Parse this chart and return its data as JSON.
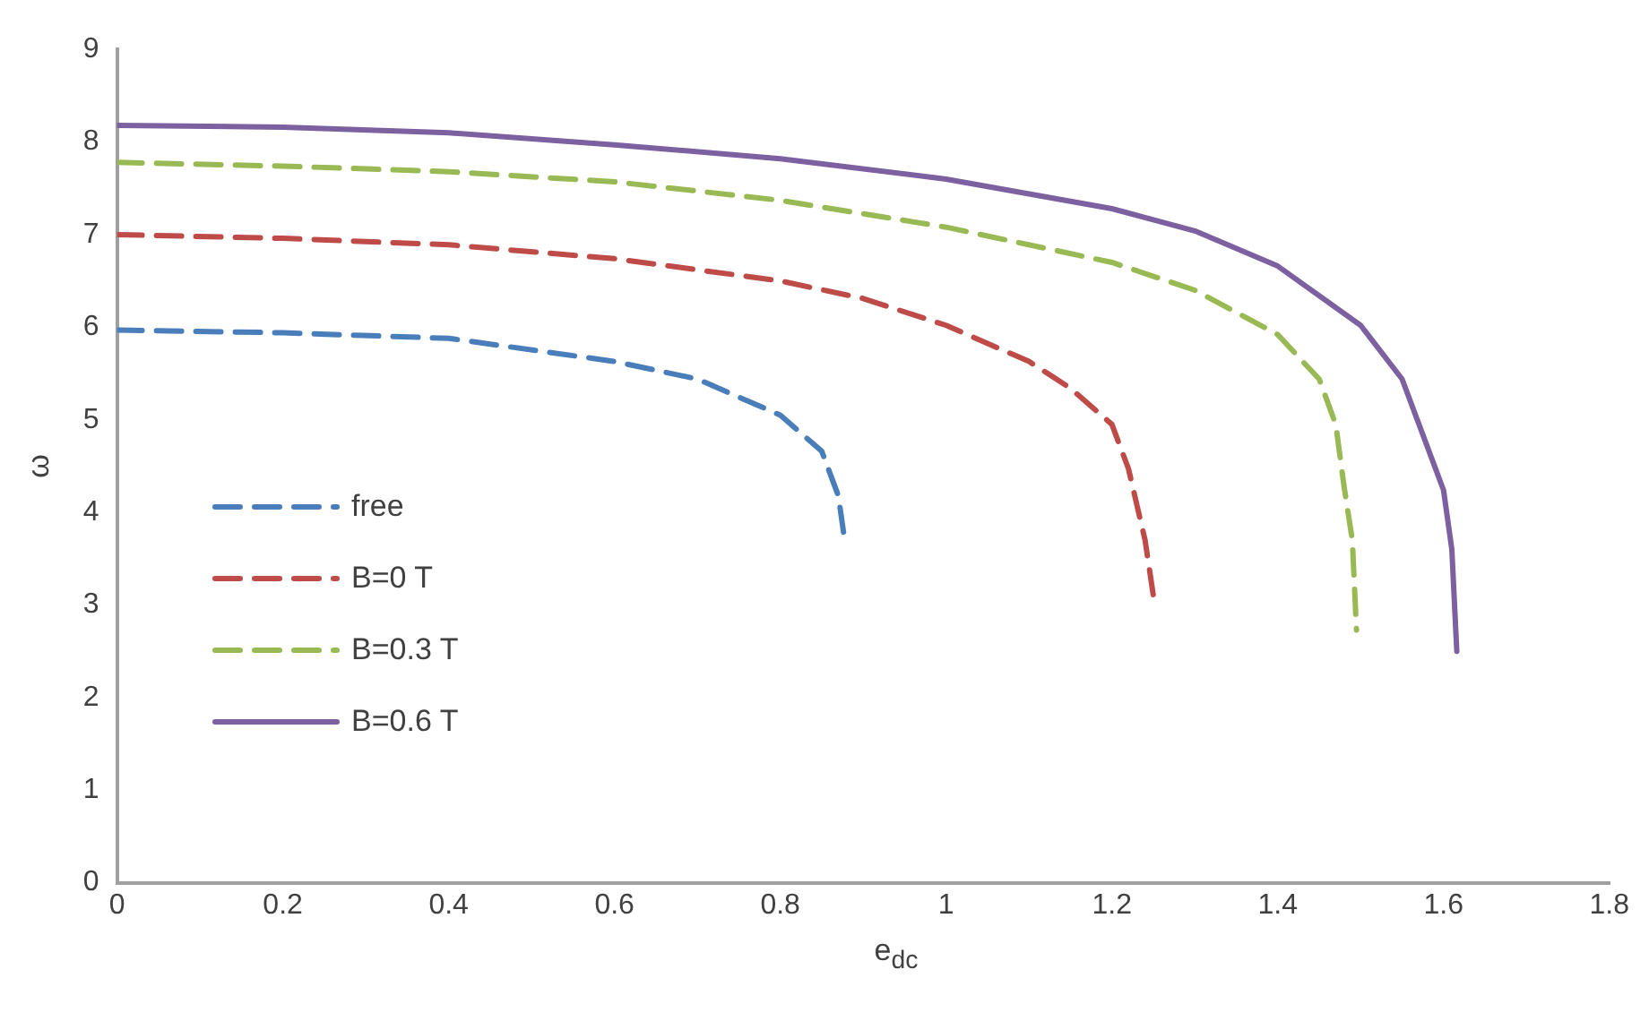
{
  "chart_data": {
    "type": "line",
    "xlabel": "e$_{dc}$",
    "ylabel": "ω",
    "xlim": [
      0,
      1.8
    ],
    "xticks": [
      0,
      0.2,
      0.4,
      0.6,
      0.8,
      1,
      1.2,
      1.4,
      1.6,
      1.8
    ],
    "ylim": [
      0,
      9
    ],
    "yticks": [
      0,
      1,
      2,
      3,
      4,
      5,
      6,
      7,
      8,
      9
    ],
    "grid": false,
    "legend": "left",
    "marker": "none",
    "series": [
      {
        "name": "free",
        "color": "#4a7ebb",
        "line_style": "dashed",
        "x": [
          0,
          0.2,
          0.4,
          0.6,
          0.7,
          0.8,
          0.85,
          0.87,
          0.877
        ],
        "values": [
          5.97,
          5.94,
          5.88,
          5.63,
          5.44,
          5.05,
          4.66,
          4.18,
          3.74
        ]
      },
      {
        "name": "B=0 T",
        "color": "#be4b48",
        "line_style": "dashed",
        "x": [
          0,
          0.2,
          0.4,
          0.6,
          0.8,
          0.9,
          1,
          1.1,
          1.15,
          1.2,
          1.22,
          1.24,
          1.25
        ],
        "values": [
          7,
          6.96,
          6.89,
          6.74,
          6.5,
          6.31,
          6.02,
          5.63,
          5.34,
          4.95,
          4.47,
          3.7,
          3.1
        ]
      },
      {
        "name": "B=0.3 T",
        "color": "#98b954",
        "line_style": "dashed",
        "x": [
          0,
          0.2,
          0.4,
          0.6,
          0.8,
          1,
          1.2,
          1.3,
          1.4,
          1.45,
          1.47,
          1.48,
          1.49,
          1.495
        ],
        "values": [
          7.78,
          7.74,
          7.68,
          7.57,
          7.37,
          7.08,
          6.7,
          6.4,
          5.92,
          5.44,
          4.95,
          4.28,
          3.7,
          2.73
        ]
      },
      {
        "name": "B=0.6 T",
        "color": "#7d60a0",
        "line_style": "solid",
        "x": [
          0,
          0.2,
          0.4,
          0.6,
          0.8,
          1,
          1.2,
          1.3,
          1.4,
          1.5,
          1.55,
          1.6,
          1.61,
          1.616
        ],
        "values": [
          8.18,
          8.16,
          8.1,
          7.97,
          7.82,
          7.6,
          7.28,
          7.04,
          6.66,
          6.02,
          5.44,
          4.24,
          3.6,
          2.5
        ]
      }
    ]
  }
}
